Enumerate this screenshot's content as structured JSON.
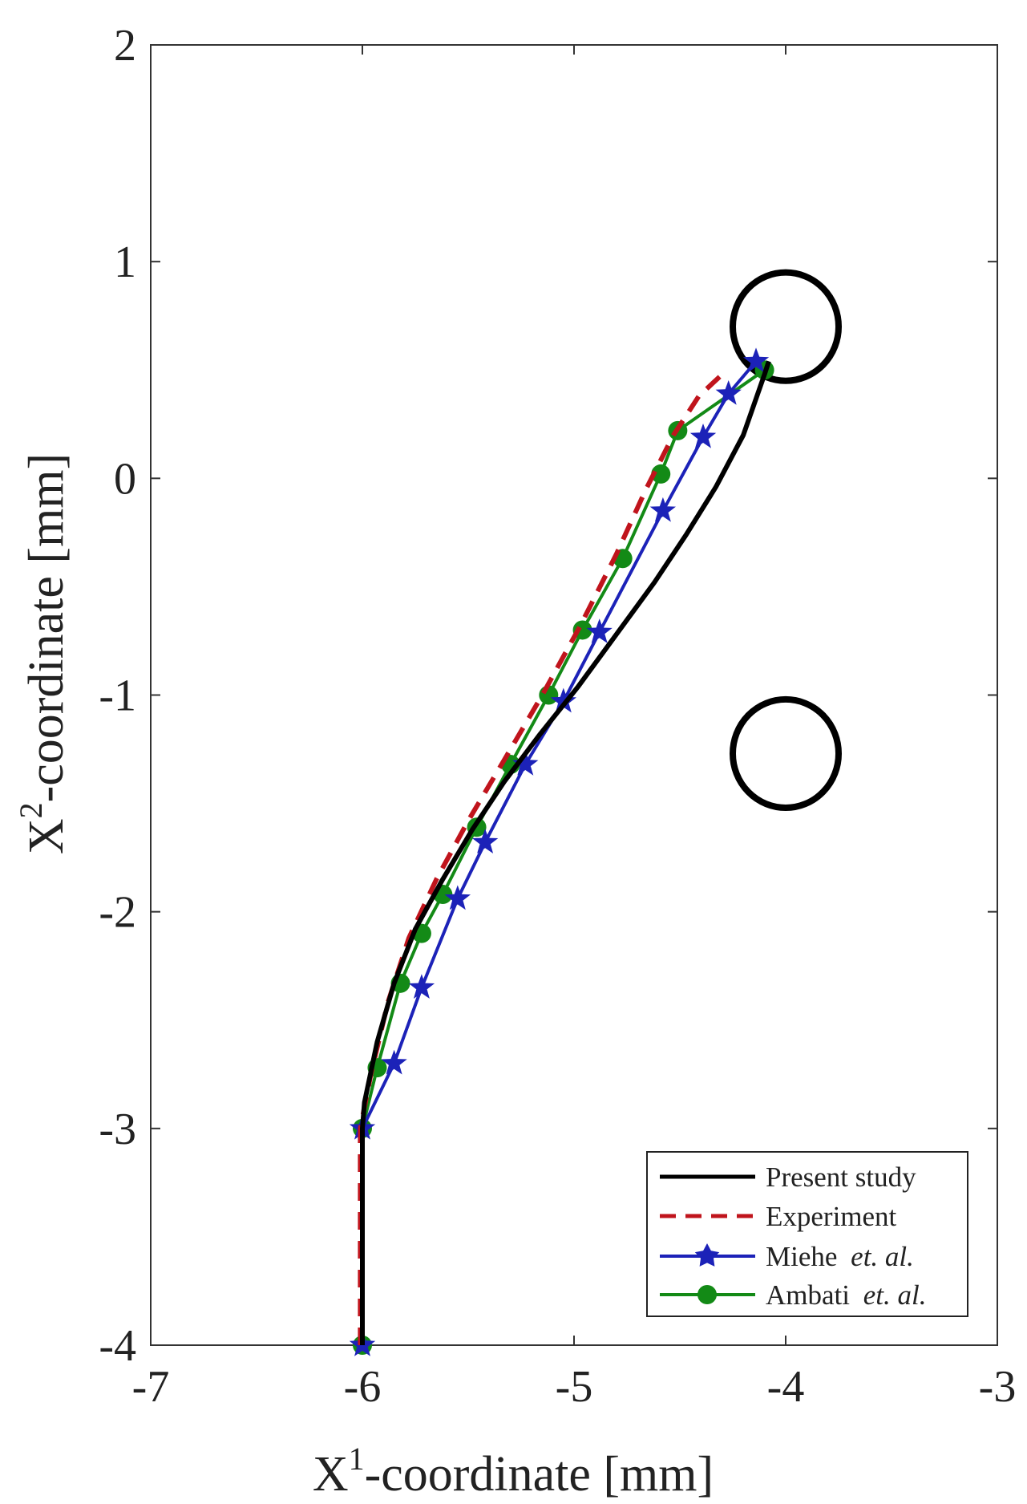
{
  "chart_data": {
    "type": "line",
    "xlabel": {
      "base": "X",
      "sup": "1",
      "rest": "-coordinate [mm]"
    },
    "ylabel": {
      "base": "X",
      "sup": "2",
      "rest": "-coordinate [mm]"
    },
    "xlim": [
      -7,
      -3
    ],
    "ylim": [
      -4,
      2
    ],
    "xticks": [
      -7,
      -6,
      -5,
      -4,
      -3
    ],
    "yticks": [
      -4,
      -3,
      -2,
      -1,
      0,
      1,
      2
    ],
    "xtick_labels": [
      "-7",
      "-6",
      "-5",
      "-4",
      "-3"
    ],
    "ytick_labels": [
      "-4",
      "-3",
      "-2",
      "-1",
      "0",
      "1",
      "2"
    ],
    "grid": false,
    "legend_position": "bottom-right",
    "legend": [
      {
        "name": "Present study",
        "plain": "Present study",
        "italic": ""
      },
      {
        "name": "Experiment",
        "plain": "Experiment",
        "italic": ""
      },
      {
        "name": "Miehe et. al.",
        "plain": "Miehe ",
        "italic": "et. al."
      },
      {
        "name": "Ambati et. al.",
        "plain": "Ambati ",
        "italic": "et. al."
      }
    ],
    "series": [
      {
        "name": "Present study",
        "color": "#000000",
        "style": "solid",
        "marker": "none",
        "x": [
          -6.0,
          -6.0,
          -5.99,
          -5.93,
          -5.85,
          -5.75,
          -5.62,
          -5.48,
          -5.33,
          -5.16,
          -4.98,
          -4.8,
          -4.62,
          -4.47,
          -4.33,
          -4.2,
          -4.1,
          -4.08
        ],
        "y": [
          -4.0,
          -3.0,
          -2.88,
          -2.6,
          -2.33,
          -2.08,
          -1.85,
          -1.62,
          -1.4,
          -1.18,
          -0.96,
          -0.72,
          -0.48,
          -0.26,
          -0.04,
          0.2,
          0.48,
          0.54
        ]
      },
      {
        "name": "Experiment",
        "color": "#c0141c",
        "style": "dashed",
        "marker": "none",
        "x": [
          -6.01,
          -6.01,
          -5.96,
          -5.88,
          -5.78,
          -5.65,
          -5.5,
          -5.33,
          -5.15,
          -4.97,
          -4.8,
          -4.66,
          -4.53,
          -4.41,
          -4.3
        ],
        "y": [
          -4.0,
          -3.0,
          -2.75,
          -2.42,
          -2.12,
          -1.85,
          -1.58,
          -1.3,
          -1.0,
          -0.68,
          -0.35,
          -0.05,
          0.2,
          0.38,
          0.48
        ]
      },
      {
        "name": "Miehe et. al.",
        "color": "#1c22b8",
        "style": "solid",
        "marker": "star",
        "x": [
          -6.0,
          -6.0,
          -5.85,
          -5.72,
          -5.55,
          -5.42,
          -5.23,
          -5.05,
          -4.88,
          -4.58,
          -4.39,
          -4.27,
          -4.14
        ],
        "y": [
          -4.0,
          -3.0,
          -2.7,
          -2.35,
          -1.94,
          -1.68,
          -1.32,
          -1.03,
          -0.71,
          -0.15,
          0.19,
          0.39,
          0.54
        ]
      },
      {
        "name": "Ambati et. al.",
        "color": "#138a16",
        "style": "solid",
        "marker": "circle",
        "x": [
          -6.0,
          -6.0,
          -5.93,
          -5.82,
          -5.72,
          -5.62,
          -5.46,
          -5.3,
          -5.12,
          -4.96,
          -4.77,
          -4.59,
          -4.51,
          -4.1
        ],
        "y": [
          -4.0,
          -3.0,
          -2.72,
          -2.33,
          -2.1,
          -1.92,
          -1.61,
          -1.32,
          -1.0,
          -0.7,
          -0.37,
          0.02,
          0.22,
          0.5
        ]
      }
    ],
    "holes": [
      {
        "name": "upper-hole",
        "cx": -4.0,
        "cy": 0.7,
        "r": 0.25
      },
      {
        "name": "lower-hole",
        "cx": -4.0,
        "cy": -1.27,
        "r": 0.25
      }
    ]
  }
}
